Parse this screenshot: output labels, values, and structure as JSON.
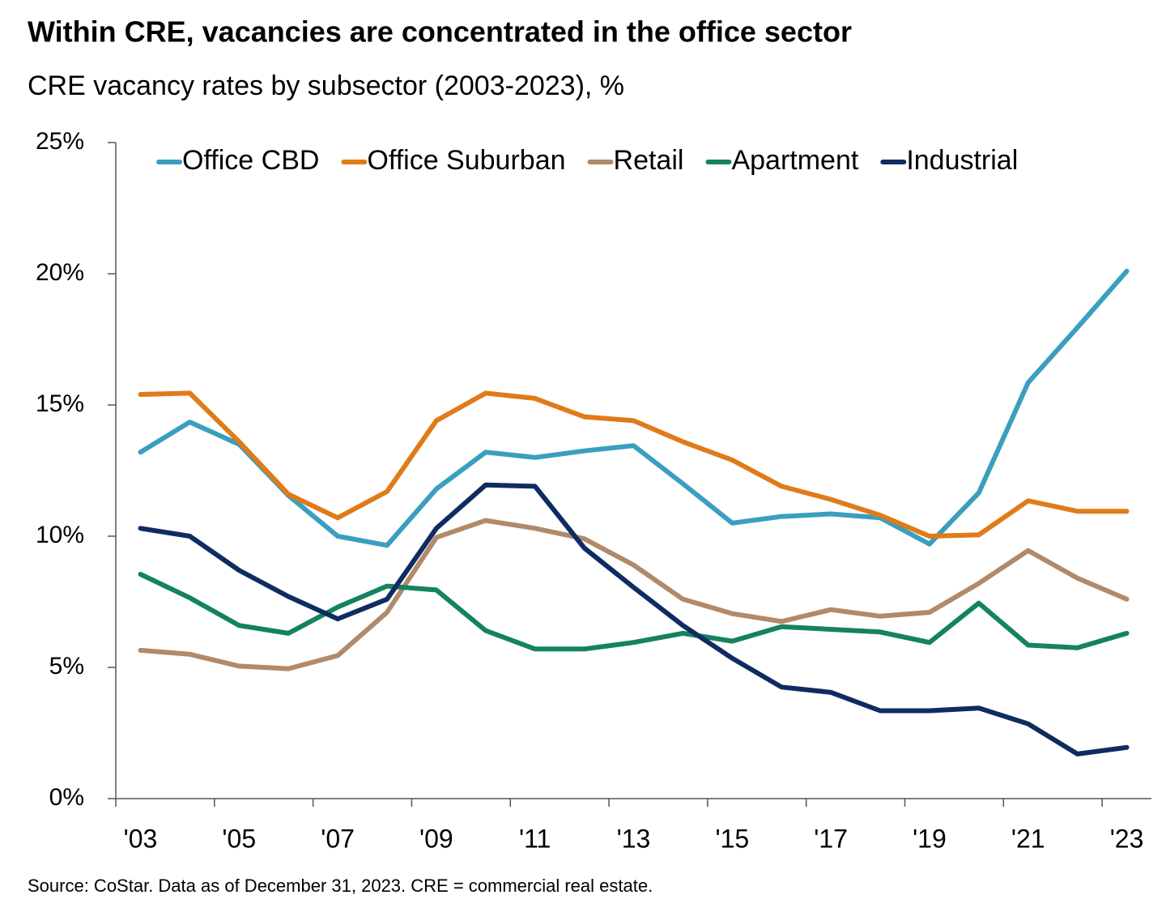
{
  "chart_data": {
    "type": "line",
    "title": "Within CRE, vacancies are concentrated in the office sector",
    "subtitle": "CRE vacancy rates by subsector (2003-2023), %",
    "source": "Source: CoStar. Data as of December 31, 2023. CRE = commercial real estate.",
    "categories": [
      "'03",
      null,
      "'05",
      null,
      "'07",
      null,
      "'09",
      null,
      "'11",
      null,
      "'13",
      null,
      "'15",
      null,
      "'17",
      null,
      "'19",
      null,
      "'21",
      null,
      "'23"
    ],
    "series": [
      {
        "name": "Office CBD",
        "color": "#3a9fbf",
        "values": [
          13.2,
          14.35,
          13.5,
          11.55,
          10.0,
          9.65,
          11.8,
          13.2,
          13.0,
          13.25,
          13.45,
          12.0,
          10.5,
          10.75,
          10.85,
          10.7,
          9.7,
          11.65,
          15.85,
          17.95,
          20.1
        ]
      },
      {
        "name": "Office Suburban",
        "color": "#e07b1a",
        "values": [
          15.4,
          15.45,
          13.6,
          11.6,
          10.7,
          11.7,
          14.4,
          15.45,
          15.25,
          14.55,
          14.4,
          13.6,
          12.9,
          11.9,
          11.4,
          10.8,
          10.0,
          10.05,
          11.35,
          10.95,
          10.95
        ]
      },
      {
        "name": "Retail",
        "color": "#b08a6a",
        "values": [
          5.65,
          5.5,
          5.05,
          4.95,
          5.45,
          7.1,
          9.95,
          10.6,
          10.3,
          9.9,
          8.9,
          7.6,
          7.05,
          6.75,
          7.2,
          6.95,
          7.1,
          8.2,
          9.45,
          8.4,
          7.6
        ]
      },
      {
        "name": "Apartment",
        "color": "#14835f",
        "values": [
          8.55,
          7.65,
          6.6,
          6.3,
          7.3,
          8.1,
          7.95,
          6.4,
          5.7,
          5.7,
          5.95,
          6.3,
          6.0,
          6.55,
          6.45,
          6.35,
          5.95,
          7.45,
          5.85,
          5.75,
          6.3
        ]
      },
      {
        "name": "Industrial",
        "color": "#0f2c62",
        "values": [
          10.3,
          10.0,
          8.7,
          7.7,
          6.85,
          7.6,
          10.3,
          11.95,
          11.9,
          9.55,
          8.05,
          6.6,
          5.35,
          4.25,
          4.05,
          3.35,
          3.35,
          3.45,
          2.85,
          1.7,
          1.95
        ]
      }
    ],
    "ylim": [
      0,
      25
    ],
    "yticks": [
      {
        "value": 0,
        "label": "0%"
      },
      {
        "value": 5,
        "label": "5%"
      },
      {
        "value": 10,
        "label": "10%"
      },
      {
        "value": 15,
        "label": "15%"
      },
      {
        "value": 20,
        "label": "20%"
      },
      {
        "value": 25,
        "label": "25%"
      }
    ],
    "legend": "top",
    "grid": false
  }
}
